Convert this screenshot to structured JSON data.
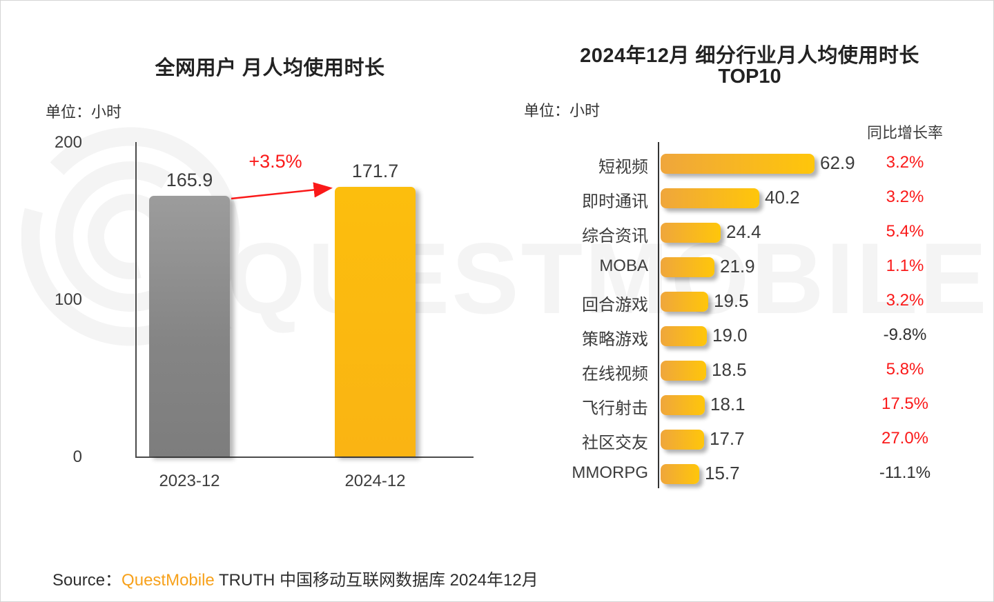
{
  "watermark": {
    "text": "QUESTMOBILE"
  },
  "colors": {
    "accent_red": "#fa1919",
    "brand_orange": "#f7a11b",
    "bar_yellow": "#fbb616",
    "bar_gray": "#8c8c8c",
    "hbar_gradient_from": "#efa63c",
    "hbar_gradient_to": "#ffc60a",
    "negative_growth_text": "#2f2f2f",
    "watermark_gray": "#f4f4f4"
  },
  "source": {
    "prefix": "Source：",
    "brand": "QuestMobile",
    "suffix": " TRUTH 中国移动互联网数据库 2024年12月"
  },
  "chart_data": [
    {
      "type": "bar",
      "title": "全网用户 月人均使用时长",
      "unit_label": "单位：小时",
      "categories": [
        "2023-12",
        "2024-12"
      ],
      "values": [
        165.9,
        171.7
      ],
      "value_labels": [
        "165.9",
        "171.7"
      ],
      "bar_colors": [
        "#8c8c8c",
        "#fbb616"
      ],
      "growth_annotation": "+3.5%",
      "ylim": [
        0,
        200
      ],
      "y_ticks": [
        "200",
        "100",
        "0"
      ],
      "grid": false,
      "legend": false
    },
    {
      "type": "bar-horizontal",
      "title": "2024年12月 细分行业月人均使用时长",
      "subtitle": "TOP10",
      "unit_label": "单位：小时",
      "growth_header": "同比增长率",
      "categories": [
        "短视频",
        "即时通讯",
        "综合资讯",
        "MOBA",
        "回合游戏",
        "策略游戏",
        "在线视频",
        "飞行射击",
        "社区交友",
        "MMORPG"
      ],
      "values": [
        62.9,
        40.2,
        24.4,
        21.9,
        19.5,
        19.0,
        18.5,
        18.1,
        17.7,
        15.7
      ],
      "value_labels": [
        "62.9",
        "40.2",
        "24.4",
        "21.9",
        "19.5",
        "19.0",
        "18.5",
        "18.1",
        "17.7",
        "15.7"
      ],
      "growth": [
        "3.2%",
        "3.2%",
        "5.4%",
        "1.1%",
        "3.2%",
        "-9.8%",
        "5.8%",
        "17.5%",
        "27.0%",
        "-11.1%"
      ],
      "xlim": [
        0,
        70
      ],
      "grid": false,
      "legend": false
    }
  ]
}
